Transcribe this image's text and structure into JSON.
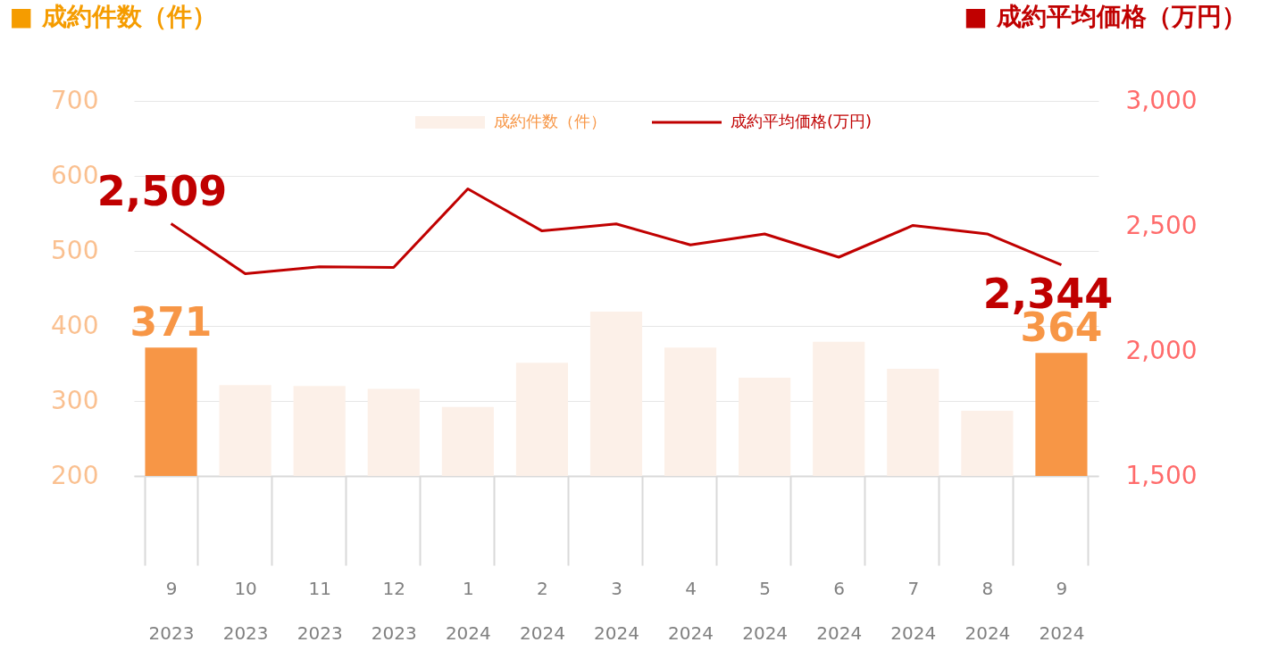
{
  "chart_data": {
    "type": "bar",
    "ylabel": "■ 成約件数（件）",
    "y2label": "■ 成約平均価格（万円）",
    "categories": [
      "9\n2023",
      "10\n2023",
      "11\n2023",
      "12\n2023",
      "1\n2024",
      "2\n2024",
      "3\n2024",
      "4\n2024",
      "5\n2024",
      "6\n2024",
      "7\n2024",
      "8\n2024",
      "9\n2024"
    ],
    "series": [
      {
        "name": "成約件数（件）",
        "color": "#fcf0e8",
        "colors": [
          "#f79646",
          "#fcf0e8",
          "#fcf0e8",
          "#fcf0e8",
          "#fcf0e8",
          "#fcf0e8",
          "#fcf0e8",
          "#fcf0e8",
          "#fcf0e8",
          "#fcf0e8",
          "#fcf0e8",
          "#fcf0e8",
          "#f79646"
        ],
        "values": [
          371,
          321,
          320,
          316,
          292,
          351,
          419,
          371,
          331,
          379,
          343,
          287,
          364
        ],
        "value_labels": [
          "371",
          null,
          null,
          null,
          null,
          null,
          null,
          null,
          null,
          null,
          null,
          null,
          "364"
        ]
      },
      {
        "name": "成約平均価格(万円)",
        "type": "line",
        "axis": "y2",
        "color": "#c00000",
        "values": [
          2509,
          2309,
          2337,
          2334,
          2648,
          2480,
          2508,
          2424,
          2468,
          2375,
          2502,
          2468,
          2344
        ],
        "value_labels": [
          "2,509",
          null,
          null,
          null,
          null,
          null,
          null,
          null,
          null,
          null,
          null,
          null,
          "2,344"
        ]
      }
    ],
    "ylim": [
      200,
      700
    ],
    "yticks": [
      200,
      300,
      400,
      500,
      600,
      700
    ],
    "y2lim": [
      1500,
      3000
    ],
    "y2ticks": [
      {
        "value": 1500,
        "label": "1,500"
      },
      {
        "value": 2000,
        "label": "2,000"
      },
      {
        "value": 2500,
        "label": "2,500"
      },
      {
        "value": 3000,
        "label": "3,000"
      }
    ],
    "grid": "y",
    "legend": "top",
    "line_style": "solid",
    "marker": "none"
  }
}
